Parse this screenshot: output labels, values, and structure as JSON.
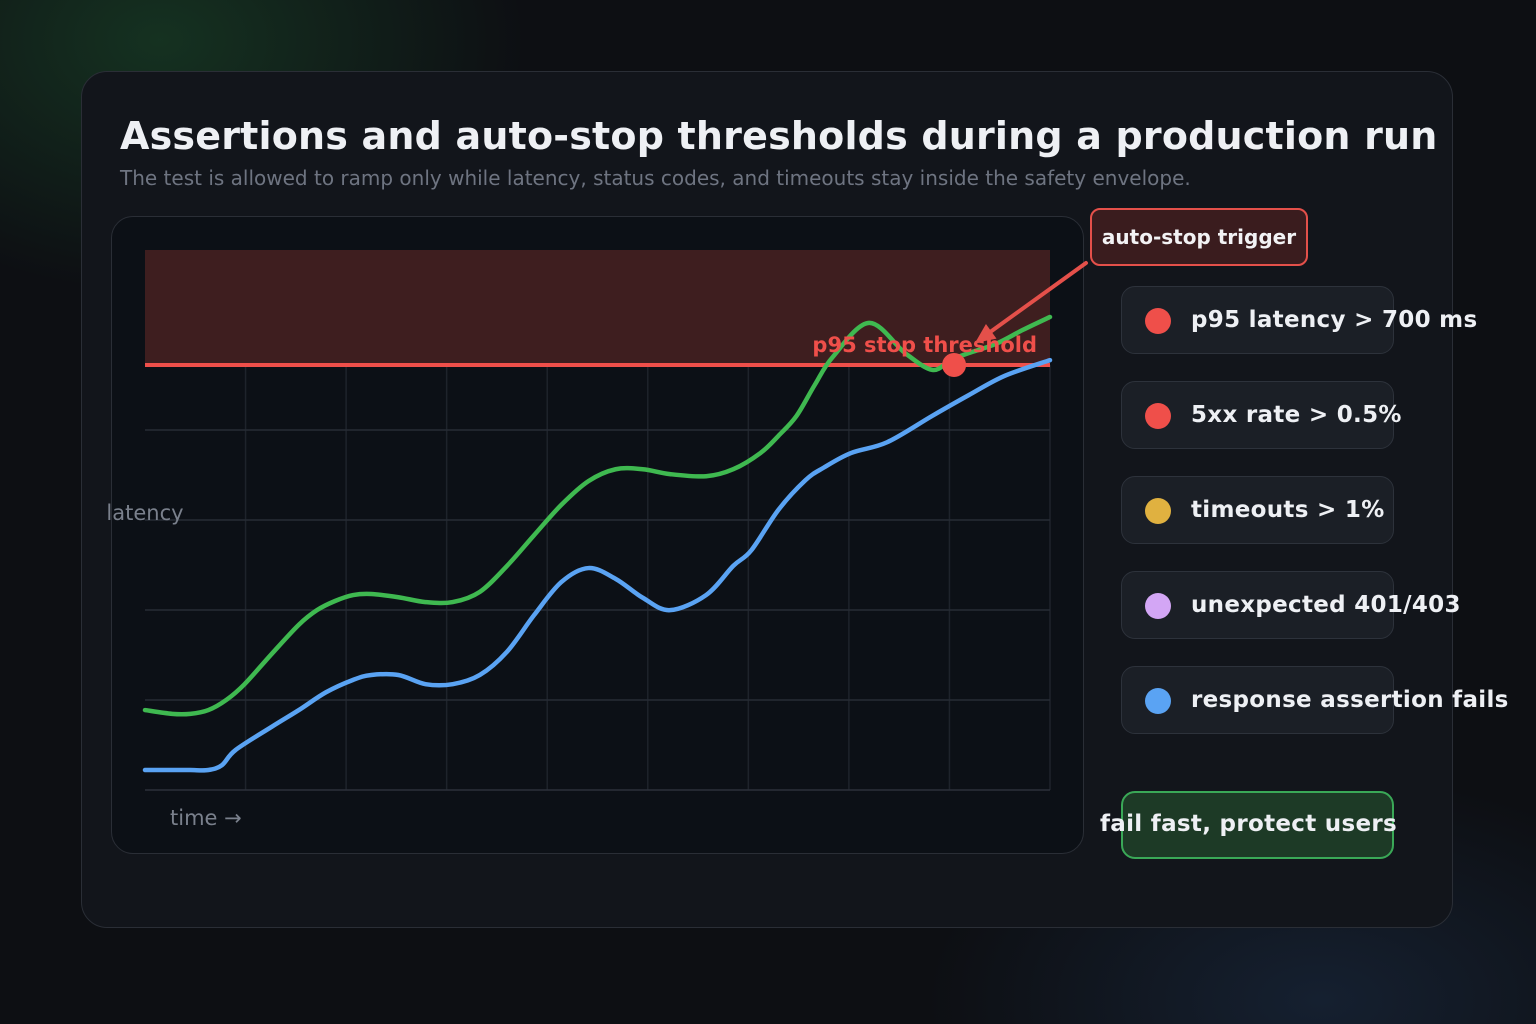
{
  "header": {
    "title": "Assertions and auto-stop thresholds during a production run",
    "subtitle": "The test is allowed to ramp only while latency, status codes, and timeouts stay inside the safety envelope."
  },
  "callout": {
    "trigger_label": "auto-stop trigger"
  },
  "rules": [
    {
      "label": "p95 latency > 700 ms",
      "color": "#ef4f4a"
    },
    {
      "label": "5xx rate > 0.5%",
      "color": "#ef4f4a"
    },
    {
      "label": "timeouts > 1%",
      "color": "#e0b140"
    },
    {
      "label": "unexpected 401/403",
      "color": "#d3a6f5"
    },
    {
      "label": "response assertion fails",
      "color": "#5aa3f3"
    }
  ],
  "cta": {
    "label": "fail fast, protect users"
  },
  "chart_data": {
    "type": "line",
    "xlabel": "time →",
    "ylabel": "latency",
    "xlim": [
      0,
      100
    ],
    "ylim": [
      0,
      100
    ],
    "grid": true,
    "threshold": {
      "label": "p95 stop threshold",
      "value": 78.7,
      "color": "#ef4f4a"
    },
    "danger_zone": {
      "from": 78.7,
      "to": 100,
      "color": "#3e1e1f"
    },
    "series": [
      {
        "color": "#3fb950",
        "x": [
          0,
          3,
          5,
          7,
          9,
          11,
          14,
          17,
          19,
          21,
          23,
          25,
          28,
          31,
          34,
          37,
          40,
          43,
          46,
          49,
          52,
          55,
          58,
          62,
          65,
          68,
          70,
          72,
          74,
          76,
          80,
          84,
          87,
          89,
          91,
          94,
          97,
          100
        ],
        "y": [
          14.8,
          14.1,
          14.1,
          14.8,
          16.7,
          19.6,
          25.2,
          30.6,
          33.3,
          35,
          36.1,
          36.3,
          35.7,
          34.8,
          34.8,
          36.7,
          41.5,
          47.2,
          52.8,
          57.2,
          59.4,
          59.4,
          58.5,
          58.1,
          59.4,
          62.4,
          65.6,
          69.3,
          75,
          80.2,
          86.5,
          80.9,
          77.8,
          79.6,
          80.9,
          82.6,
          85.2,
          87.6
        ]
      },
      {
        "color": "#5aa3f3",
        "x": [
          0,
          3,
          5,
          7,
          8.5,
          10,
          14,
          17,
          20,
          23,
          25,
          28,
          31,
          34,
          37,
          40,
          43,
          46,
          49,
          52,
          55,
          58,
          62,
          65,
          67,
          70,
          73,
          75,
          78,
          82,
          87,
          91,
          95,
          100
        ],
        "y": [
          3.7,
          3.7,
          3.7,
          3.7,
          4.6,
          7.4,
          11.7,
          14.8,
          18.1,
          20.4,
          21.3,
          21.3,
          19.6,
          19.6,
          21.3,
          25.6,
          32.4,
          38.5,
          41.1,
          39.1,
          35.6,
          33.3,
          36.1,
          41.5,
          44.4,
          51.9,
          57.4,
          59.7,
          62.4,
          64.4,
          69.3,
          73.1,
          76.7,
          79.6
        ]
      }
    ],
    "trigger_point": {
      "x": 89.4,
      "y": 78.7
    }
  }
}
